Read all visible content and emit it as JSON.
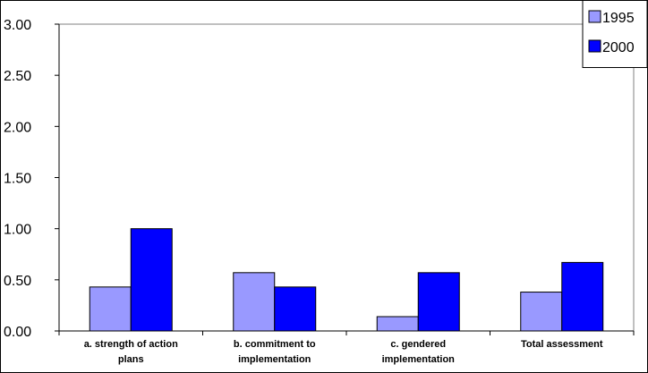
{
  "chart_data": {
    "type": "bar",
    "title": "",
    "xlabel": "",
    "ylabel": "",
    "ylim": [
      0,
      3
    ],
    "y_ticks": [
      "0.00",
      "0.50",
      "1.00",
      "1.50",
      "2.00",
      "2.50",
      "3.00"
    ],
    "grid": false,
    "legend_position": "top-right",
    "categories": [
      [
        "a. strength of action",
        "plans"
      ],
      [
        "b. commitment to",
        "implementation"
      ],
      [
        "c. gendered",
        "implementation"
      ],
      [
        "Total assessment"
      ]
    ],
    "series": [
      {
        "name": "1995",
        "color": "#9999ff",
        "values": [
          0.43,
          0.57,
          0.14,
          0.38
        ]
      },
      {
        "name": "2000",
        "color": "#0000ff",
        "values": [
          1.0,
          0.43,
          0.57,
          0.67
        ]
      }
    ]
  }
}
